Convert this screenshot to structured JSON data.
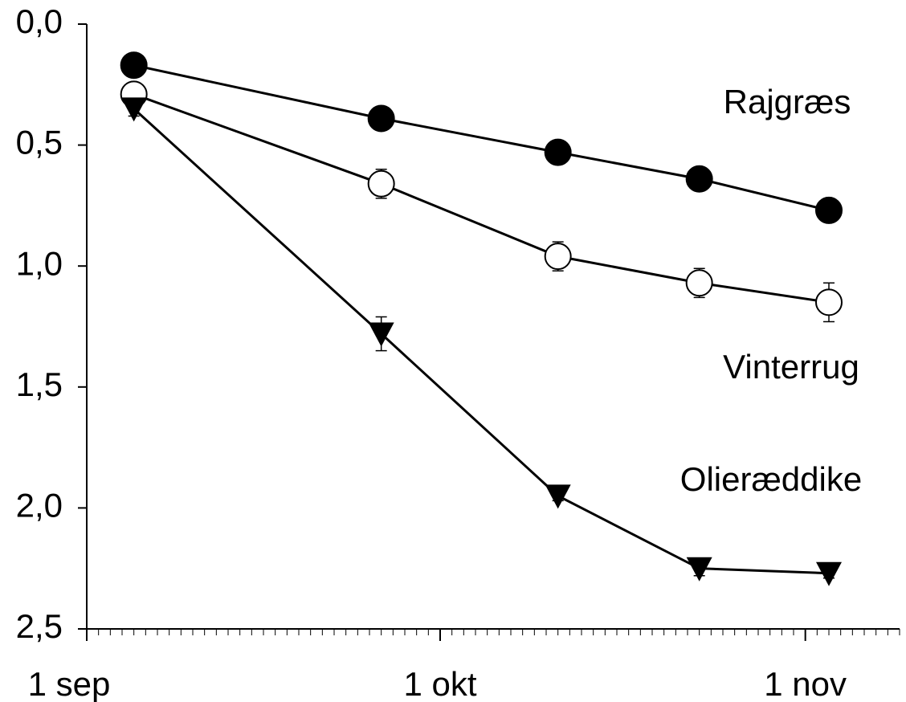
{
  "chart_data": {
    "type": "line",
    "x": [
      4,
      25,
      40,
      52,
      63
    ],
    "series": [
      {
        "name": "Rajgræs",
        "color": "#000000",
        "marker": "circle-filled",
        "values": [
          0.17,
          0.39,
          0.53,
          0.64,
          0.77
        ]
      },
      {
        "name": "Vinterrug",
        "color": "#000000",
        "marker": "circle-open",
        "values": [
          0.29,
          0.66,
          0.96,
          1.07,
          1.15
        ],
        "errors": [
          0.02,
          0.06,
          0.06,
          0.06,
          0.08
        ]
      },
      {
        "name": "Olieræddike",
        "color": "#000000",
        "marker": "triangle-down",
        "values": [
          0.35,
          1.28,
          1.95,
          2.25,
          2.27
        ],
        "errors": [
          0.03,
          0.07,
          0.02,
          0.03,
          0.02
        ]
      }
    ],
    "xlim": [
      0,
      69
    ],
    "xticks": [
      {
        "value": 0,
        "label": "1 sep"
      },
      {
        "value": 30,
        "label": "1 okt"
      },
      {
        "value": 61,
        "label": "1 nov"
      }
    ],
    "xminor": 1,
    "ylim": [
      0,
      2.5
    ],
    "yticks": [
      {
        "value": 0,
        "label": "0,0"
      },
      {
        "value": 0.5,
        "label": "0,5"
      },
      {
        "value": 1,
        "label": "1,0"
      },
      {
        "value": 1.5,
        "label": "1,5"
      },
      {
        "value": 2,
        "label": "2,0"
      },
      {
        "value": 2.5,
        "label": "2,5"
      }
    ],
    "y_inverted": true
  }
}
